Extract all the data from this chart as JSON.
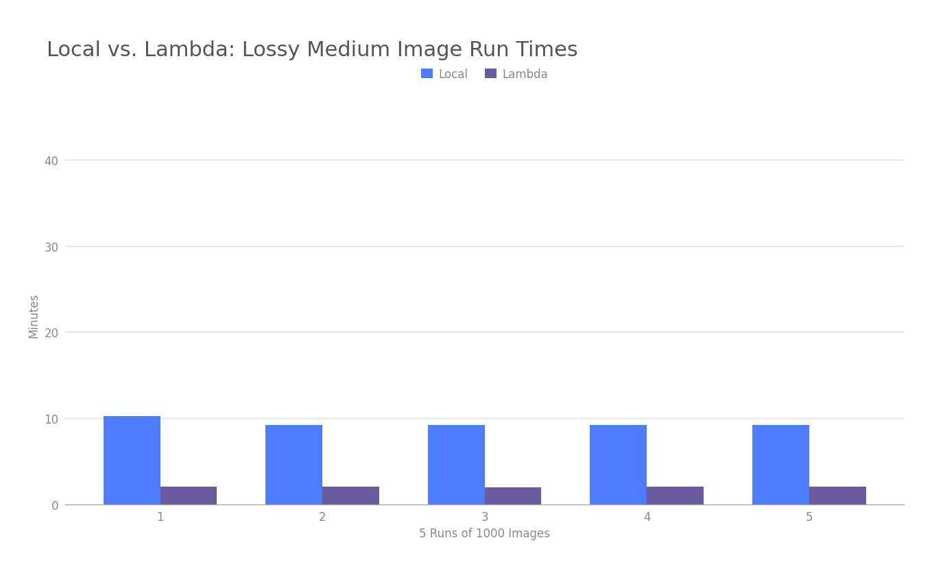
{
  "title": "Local vs. Lambda: Lossy Medium Image Run Times",
  "xlabel": "5 Runs of 1000 Images",
  "ylabel": "Minutes",
  "categories": [
    1,
    2,
    3,
    4,
    5
  ],
  "local_values": [
    10.2,
    9.2,
    9.2,
    9.2,
    9.2
  ],
  "lambda_values": [
    2.0,
    2.05,
    1.95,
    2.05,
    2.05
  ],
  "local_color": "#4d7cff",
  "lambda_color": "#6b5b9e",
  "ylim": [
    0,
    44
  ],
  "yticks": [
    0,
    10,
    20,
    30,
    40
  ],
  "bar_width": 0.35,
  "legend_labels": [
    "Local",
    "Lambda"
  ],
  "title_fontsize": 22,
  "axis_label_fontsize": 12,
  "tick_fontsize": 12,
  "legend_fontsize": 12,
  "title_color": "#555555",
  "tick_color": "#888888",
  "grid_color": "#dddddd",
  "background_color": "#ffffff"
}
